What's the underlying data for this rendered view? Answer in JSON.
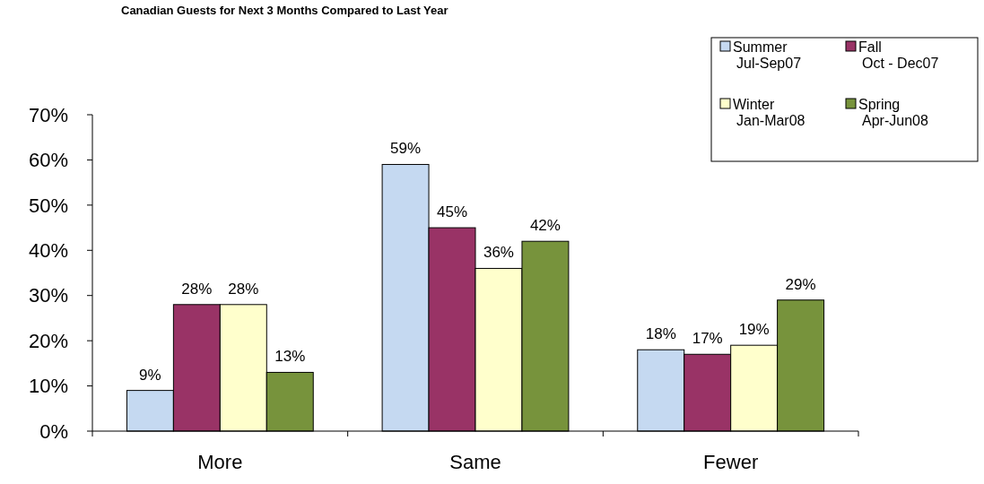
{
  "chart_data": {
    "type": "bar",
    "title": "Canadian Guests for Next 3 Months Compared to Last Year",
    "categories": [
      "More",
      "Same",
      "Fewer"
    ],
    "series": [
      {
        "name": "Summer\nJul-Sep07",
        "color": "#c5d9f1",
        "values": [
          9,
          59,
          18
        ],
        "value_labels": [
          "9%",
          "59%",
          "18%"
        ]
      },
      {
        "name": "Fall\nOct - Dec07",
        "color": "#993366",
        "values": [
          28,
          45,
          17
        ],
        "value_labels": [
          "28%",
          "45%",
          "17%"
        ]
      },
      {
        "name": "Winter\nJan-Mar08",
        "color": "#ffffcc",
        "values": [
          28,
          36,
          19
        ],
        "value_labels": [
          "28%",
          "36%",
          "19%"
        ]
      },
      {
        "name": "Spring\nApr-Jun08",
        "color": "#77933c",
        "values": [
          13,
          42,
          29
        ],
        "value_labels": [
          "13%",
          "42%",
          "29%"
        ]
      }
    ],
    "ylim": [
      0,
      70
    ],
    "yticks": [
      {
        "value": 0,
        "label": "0%"
      },
      {
        "value": 10,
        "label": "10%"
      },
      {
        "value": 20,
        "label": "20%"
      },
      {
        "value": 30,
        "label": "30%"
      },
      {
        "value": 40,
        "label": "40%"
      },
      {
        "value": 50,
        "label": "50%"
      },
      {
        "value": 60,
        "label": "60%"
      },
      {
        "value": 70,
        "label": "70%"
      }
    ],
    "grid": false,
    "legend": "top right"
  }
}
